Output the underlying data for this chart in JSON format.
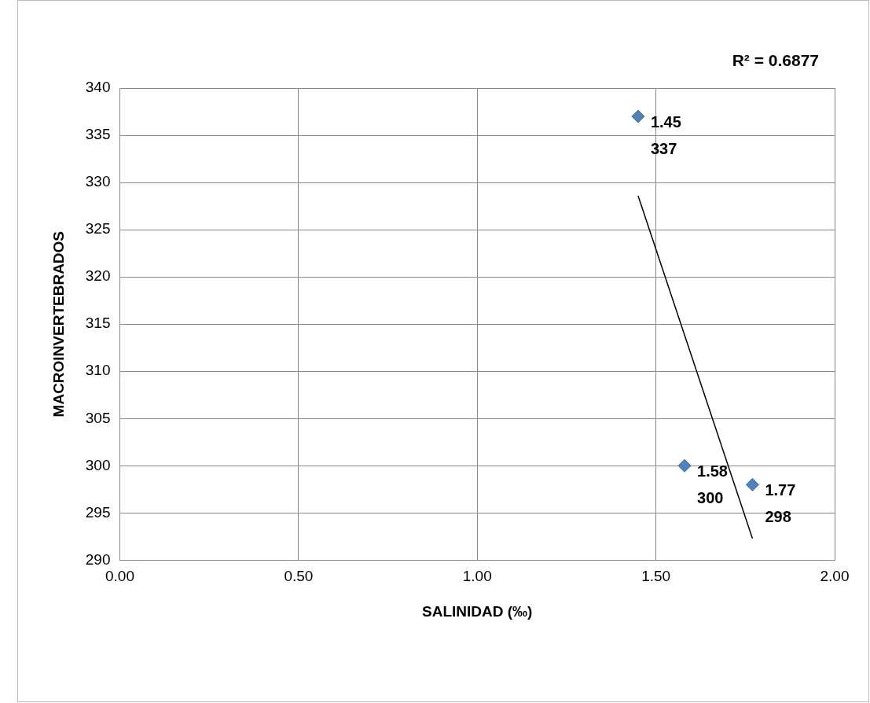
{
  "chart_data": {
    "type": "scatter",
    "xlabel": "SALINIDAD (‰)",
    "ylabel": "MACROINVERTEBRADOS",
    "annotations": [
      "R² = 0.6877",
      {
        "text": "1.45\n337",
        "x": 1.45,
        "y": 337
      },
      {
        "text": "1.58\n300",
        "x": 1.58,
        "y": 300
      },
      {
        "text": "1.77\n298",
        "x": 1.77,
        "y": 298
      }
    ],
    "xlim": [
      0,
      2
    ],
    "xticks": [
      {
        "value": 0,
        "label": "0.00"
      },
      {
        "value": 0.5,
        "label": "0.50"
      },
      {
        "value": 1,
        "label": "1.00"
      },
      {
        "value": 1.5,
        "label": "1.50"
      },
      {
        "value": 2,
        "label": "2.00"
      }
    ],
    "ylim": [
      290,
      340
    ],
    "yticks": [
      290,
      295,
      300,
      305,
      310,
      315,
      320,
      325,
      330,
      335,
      340
    ],
    "grid": true,
    "legend": false,
    "series": [
      {
        "color": "#4f81bd",
        "x": [
          1.45,
          1.58,
          1.77
        ],
        "values": [
          337,
          300,
          298
        ],
        "marker": "diamond"
      },
      {
        "type": "line",
        "color": "#000000",
        "x": [
          1.45,
          1.77
        ],
        "values": [
          328.6,
          292.3
        ],
        "marker": "none"
      }
    ]
  }
}
